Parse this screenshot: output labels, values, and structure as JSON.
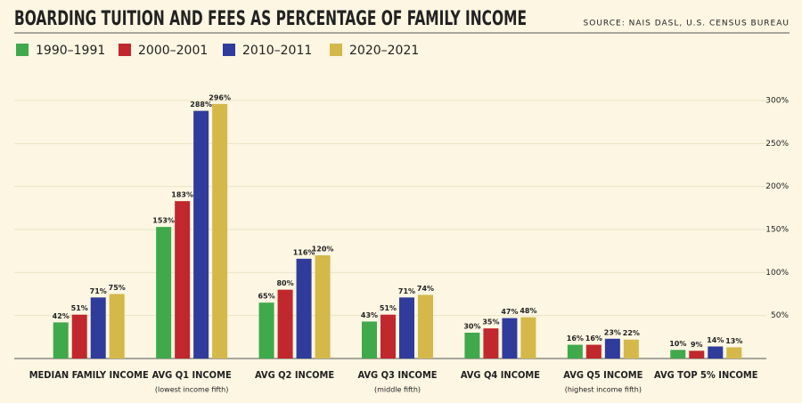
{
  "chart_data": {
    "type": "bar",
    "title": "BOARDING TUITION AND FEES AS PERCENTAGE OF FAMILY INCOME",
    "source": "SOURCE: NAIS DASL, U.S. CENSUS BUREAU",
    "categories": [
      "MEDIAN FAMILY INCOME",
      "AVG Q1 INCOME",
      "AVG Q2 INCOME",
      "AVG Q3 INCOME",
      "AVG Q4 INCOME",
      "AVG Q5 INCOME",
      "AVG TOP 5% INCOME"
    ],
    "category_notes": [
      null,
      "(lowest income fifth)",
      null,
      "(middle fifth)",
      null,
      "(highest income fifth)",
      null
    ],
    "series": [
      {
        "name": "1990–1991",
        "color": "#3fa94b",
        "values": [
          42,
          153,
          65,
          43,
          30,
          16,
          10
        ],
        "value_labels": [
          "42%",
          "153%",
          "65%",
          "43%",
          "30%",
          "16%",
          "10%"
        ]
      },
      {
        "name": "2000–2001",
        "color": "#c0282d",
        "values": [
          51,
          183,
          80,
          51,
          35,
          16,
          9
        ],
        "value_labels": [
          "51%",
          "183%",
          "80%",
          "51%",
          "35%",
          "16%",
          "9%"
        ]
      },
      {
        "name": "2010–2011",
        "color": "#2f3c9c",
        "values": [
          71,
          288,
          116,
          71,
          47,
          23,
          14
        ],
        "value_labels": [
          "71%",
          "288%",
          "116%",
          "71%",
          "47%",
          "23%",
          "14%"
        ]
      },
      {
        "name": "2020–2021",
        "color": "#d4b84a",
        "values": [
          75,
          296,
          120,
          74,
          48,
          22,
          13
        ],
        "value_labels": [
          "75%",
          "296%",
          "120%",
          "74%",
          "48%",
          "22%",
          "13%"
        ]
      }
    ],
    "ylim": [
      0,
      300
    ],
    "yticks": [
      {
        "value": 50,
        "label": "50%"
      },
      {
        "value": 100,
        "label": "100%"
      },
      {
        "value": 150,
        "label": "150%"
      },
      {
        "value": 200,
        "label": "200%"
      },
      {
        "value": 250,
        "label": "250%"
      },
      {
        "value": 300,
        "label": "300%"
      }
    ],
    "grid": true,
    "y_axis_side": "right"
  }
}
